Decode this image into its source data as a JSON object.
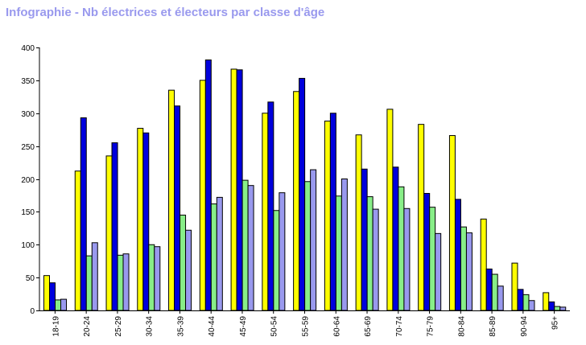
{
  "title": "Infographie - Nb électrices et électeurs par classe d'âge",
  "colors": {
    "title": "#9999ee",
    "series": [
      "#ffff00",
      "#0000dd",
      "#88ee88",
      "#9999ee"
    ]
  },
  "chart_data": {
    "type": "bar",
    "title": "Infographie - Nb électrices et électeurs par classe d'âge",
    "xlabel": "",
    "ylabel": "",
    "ylim": [
      0,
      400
    ],
    "yticks": [
      0,
      50,
      100,
      150,
      200,
      250,
      300,
      350,
      400
    ],
    "grid": false,
    "legend": "none",
    "categories": [
      "18-19",
      "20-24",
      "25-29",
      "30-34",
      "35-39",
      "40-44",
      "45-49",
      "50-54",
      "55-59",
      "60-64",
      "65-69",
      "70-74",
      "75-79",
      "80-84",
      "85-89",
      "90-94",
      "95+"
    ],
    "series": [
      {
        "color": "#ffff00",
        "values": [
          53,
          212,
          235,
          277,
          335,
          350,
          367,
          300,
          333,
          288,
          267,
          306,
          283,
          266,
          139,
          72,
          27
        ]
      },
      {
        "color": "#0000dd",
        "values": [
          42,
          293,
          255,
          270,
          311,
          381,
          366,
          317,
          353,
          300,
          215,
          218,
          178,
          169,
          63,
          32,
          13
        ]
      },
      {
        "color": "#88ee88",
        "values": [
          16,
          83,
          84,
          100,
          145,
          162,
          198,
          152,
          196,
          174,
          173,
          188,
          157,
          127,
          55,
          24,
          6
        ]
      },
      {
        "color": "#9999ee",
        "values": [
          17,
          103,
          86,
          97,
          122,
          172,
          190,
          179,
          214,
          200,
          154,
          155,
          117,
          118,
          37,
          15,
          5
        ]
      }
    ]
  }
}
